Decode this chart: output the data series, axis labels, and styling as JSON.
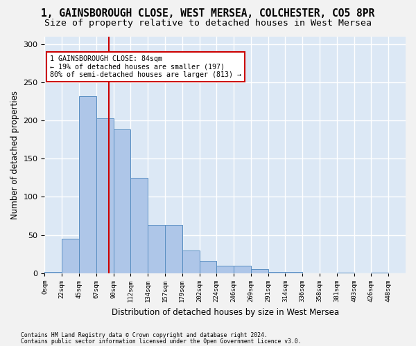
{
  "title": "1, GAINSBOROUGH CLOSE, WEST MERSEA, COLCHESTER, CO5 8PR",
  "subtitle": "Size of property relative to detached houses in West Mersea",
  "xlabel": "Distribution of detached houses by size in West Mersea",
  "ylabel": "Number of detached properties",
  "footer_line1": "Contains HM Land Registry data © Crown copyright and database right 2024.",
  "footer_line2": "Contains public sector information licensed under the Open Government Licence v3.0.",
  "bar_labels": [
    "0sqm",
    "22sqm",
    "45sqm",
    "67sqm",
    "90sqm",
    "112sqm",
    "134sqm",
    "157sqm",
    "179sqm",
    "202sqm",
    "224sqm",
    "246sqm",
    "269sqm",
    "291sqm",
    "314sqm",
    "336sqm",
    "358sqm",
    "381sqm",
    "403sqm",
    "426sqm",
    "448sqm"
  ],
  "bar_values": [
    2,
    45,
    232,
    203,
    188,
    125,
    63,
    63,
    30,
    16,
    10,
    10,
    5,
    2,
    2,
    0,
    0,
    1,
    0,
    1,
    0
  ],
  "bar_color": "#aec6e8",
  "bar_edge_color": "#5a8fc2",
  "annotation_line1": "1 GAINSBOROUGH CLOSE: 84sqm",
  "annotation_line2": "← 19% of detached houses are smaller (197)",
  "annotation_line3": "80% of semi-detached houses are larger (813) →",
  "vline_color": "#cc0000",
  "annotation_box_color": "#ffffff",
  "annotation_box_edge": "#cc0000",
  "ylim": [
    0,
    310
  ],
  "yticks": [
    0,
    50,
    100,
    150,
    200,
    250,
    300
  ],
  "background_color": "#dce8f5",
  "grid_color": "#ffffff",
  "fig_background": "#f2f2f2",
  "title_fontsize": 10.5,
  "subtitle_fontsize": 9.5,
  "xlabel_fontsize": 8.5,
  "ylabel_fontsize": 8.5,
  "vline_x_data": 3.755
}
